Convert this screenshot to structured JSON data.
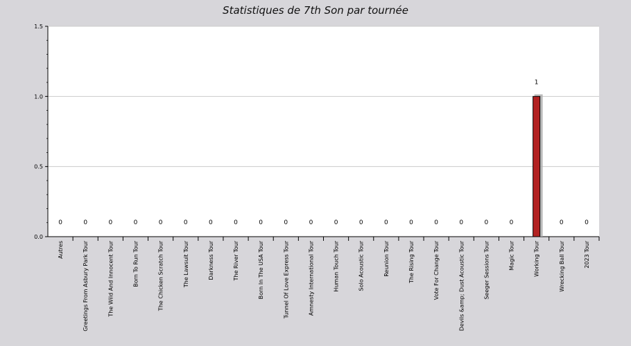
{
  "chart_data": {
    "type": "bar",
    "title": "Statistiques de 7th Son par tournée",
    "xlabel": "",
    "ylabel": "",
    "ylim": [
      0,
      1.5
    ],
    "yticks": [
      "0.0",
      "0.5",
      "1.0",
      "1.5"
    ],
    "grid": true,
    "categories": [
      "Autres",
      "Greetings From Asbury Park Tour",
      "The Wild And Innocent Tour",
      "Born To Run Tour",
      "The Chicken Scratch Tour",
      "The Lawsuit Tour",
      "Darkness Tour",
      "The River Tour",
      "Born In The USA Tour",
      "Tunnel Of Love Express Tour",
      "Amnesty International Tour",
      "Human Touch Tour",
      "Solo Acoustic Tour",
      "Reunion Tour",
      "The Rising Tour",
      "Vote For Change Tour",
      "Devils &amp; Dust Acoustic Tour",
      "Seeger Sessions Tour",
      "Magic Tour",
      "Working Tour",
      "Wrecking Ball Tour",
      "2023 Tour"
    ],
    "values": [
      0,
      0,
      0,
      0,
      0,
      0,
      0,
      0,
      0,
      0,
      0,
      0,
      0,
      0,
      0,
      0,
      0,
      0,
      0,
      1,
      0,
      0
    ],
    "data_labels": [
      "0",
      "0",
      "0",
      "0",
      "0",
      "0",
      "0",
      "0",
      "0",
      "0",
      "0",
      "0",
      "0",
      "0",
      "0",
      "0",
      "0",
      "0",
      "0",
      "1",
      "0",
      "0"
    ],
    "colors": {
      "bar": "#b22222",
      "plot_bg": "#ffffff",
      "page_bg": "#d7d6da",
      "grid": "#cccccc"
    }
  }
}
